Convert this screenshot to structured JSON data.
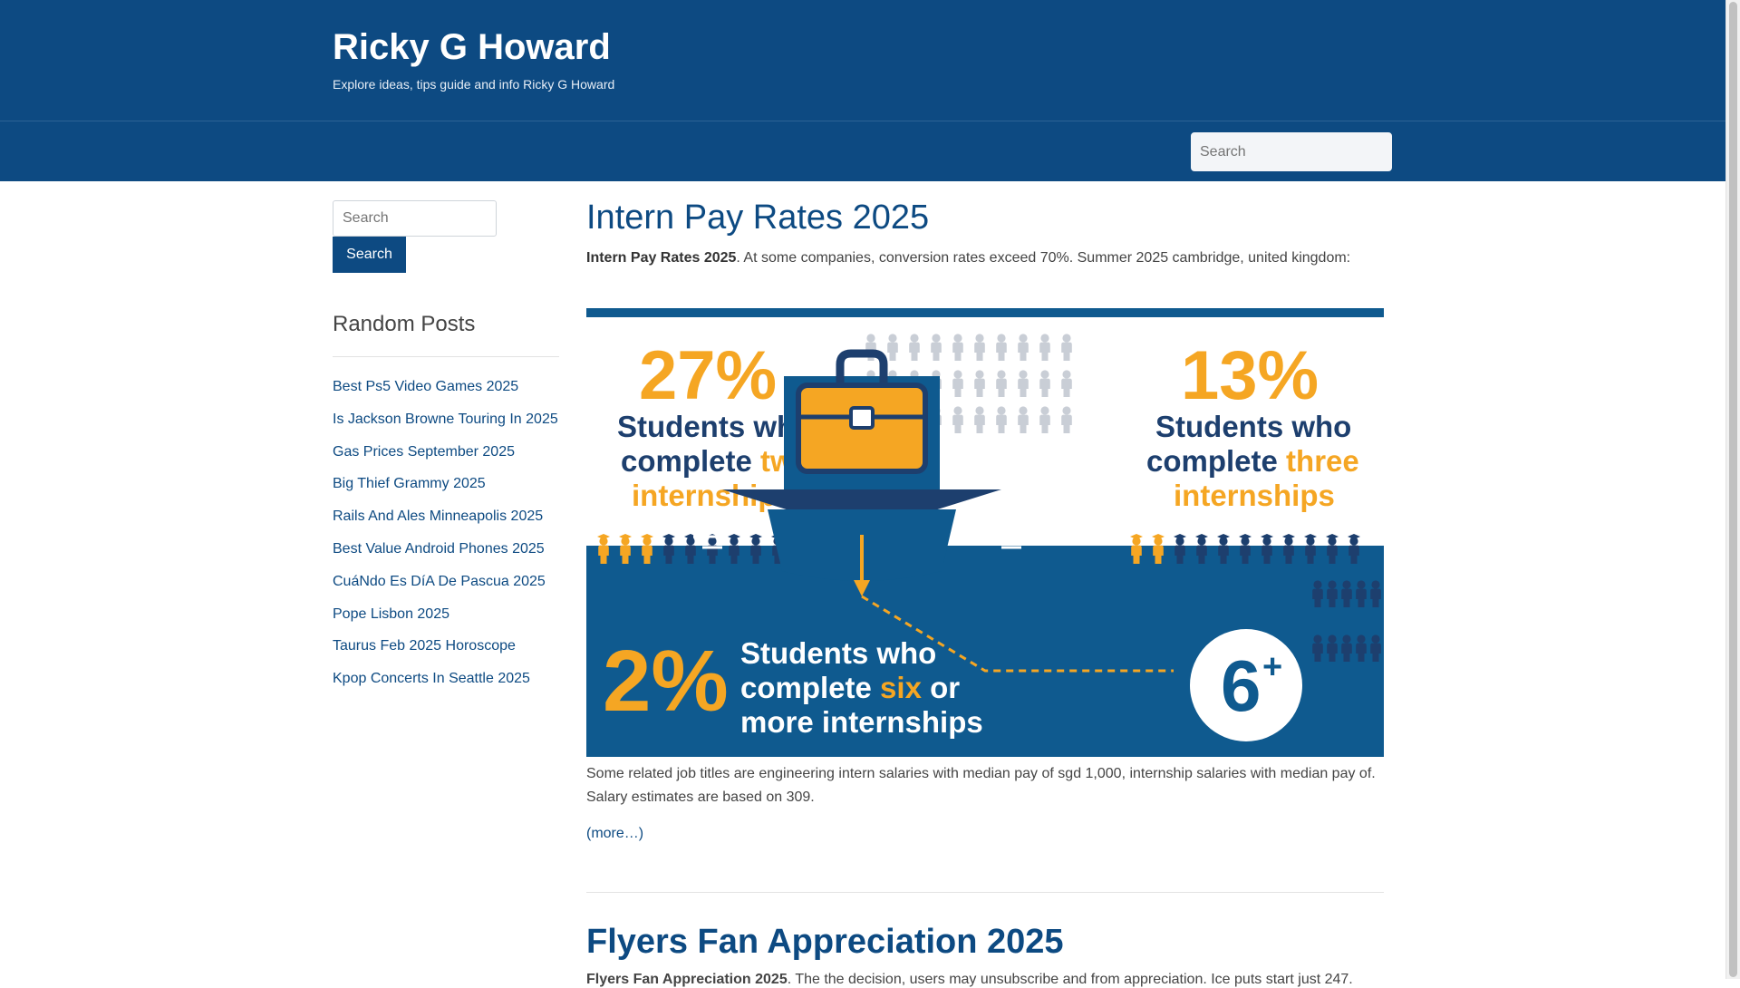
{
  "header": {
    "site_title": "Ricky G Howard",
    "tagline": "Explore ideas, tips guide and info Ricky G Howard"
  },
  "nav": {
    "search_placeholder": "Search"
  },
  "sidebar": {
    "search_placeholder": "Search",
    "search_button": "Search",
    "widget_title": "Random Posts",
    "random_posts": [
      "Best Ps5 Video Games 2025",
      "Is Jackson Browne Touring In 2025",
      "Gas Prices September 2025",
      "Big Thief Grammy 2025",
      "Rails And Ales Minneapolis 2025",
      "Best Value Android Phones 2025",
      "CuáNdo Es DíA De Pascua 2025",
      "Pope Lisbon 2025",
      "Taurus Feb 2025 Horoscope",
      "Kpop Concerts In Seattle 2025"
    ]
  },
  "post1": {
    "title": "Intern Pay Rates 2025",
    "excerpt_bold": "Intern Pay Rates 2025",
    "excerpt_rest": ". At some companies, conversion rates exceed 70%. Summer 2025 cambridge, united kingdom:",
    "body": "Some related job titles are engineering intern salaries with median pay of sgd 1,000, internship salaries with median pay of. Salary estimates are based on 309.",
    "more_link": "(more…)",
    "infographic": {
      "stat_two_pct": "27%",
      "stat_two_line1": "Students who",
      "stat_two_line2_a": "complete ",
      "stat_two_line2_b": "two",
      "stat_two_line3": "internships",
      "stat_three_pct": "13%",
      "stat_three_line1": "Students who",
      "stat_three_line2_a": "complete ",
      "stat_three_line2_b": "three",
      "stat_three_line3": "internships",
      "stat_six_pct": "2%",
      "stat_six_line1": "Students who",
      "stat_six_line2_a": "complete ",
      "stat_six_line2_b": "six",
      "stat_six_line2_c": " or",
      "stat_six_line3": "more internships",
      "badge": "6",
      "badge_sup": "+",
      "colors": {
        "orange": "#f5a623",
        "navy": "#1d3f6e",
        "blue": "#0f5a8f",
        "light_person": "#c9ced6"
      }
    }
  },
  "post2": {
    "title": "Flyers Fan Appreciation 2025",
    "excerpt_bold": "Flyers Fan Appreciation 2025",
    "excerpt_rest": ". The the decision, users may unsubscribe and from appreciation. Ice puts start just 247."
  }
}
